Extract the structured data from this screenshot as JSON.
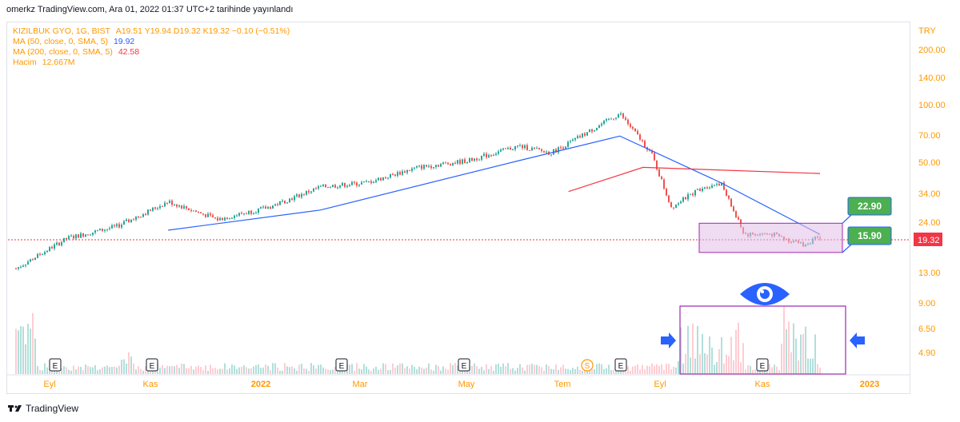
{
  "caption": "omerkz TradingView.com, Ara 01, 2022 01:37 UTC+2 tarihinde yayınlandı",
  "legend": {
    "symbol": "KIZILBUK GYO, 1G, BIST",
    "ohlc": "A19.51  Y19.94  D19.32  K19.32  −0.10 (−0.51%)",
    "ma50_label": "MA (50, close, 0, SMA, 5)",
    "ma50_value": "19.92",
    "ma200_label": "MA (200, close, 0, SMA, 5)",
    "ma200_value": "42.58",
    "volume_label": "Hacim",
    "volume_value": "12.667M"
  },
  "footer": {
    "brand": "TradingView"
  },
  "colors": {
    "up": "#26a69a",
    "down": "#ef5350",
    "ma50": "#2962ff",
    "ma200": "#f23645",
    "axis_text": "#ff9800",
    "box_fill": "#e1bee7",
    "box_border": "#9c27b0",
    "label_green": "#4caf50",
    "arrow_blue": "#2962ff",
    "price_line": "#f23645"
  },
  "chart_data": {
    "type": "candlestick",
    "currency": "TRY",
    "y_scale": "log",
    "y_ticks": [
      "200.00",
      "140.00",
      "100.00",
      "70.00",
      "50.00",
      "34.00",
      "24.00",
      "19.32",
      "13.00",
      "9.00",
      "6.50",
      "4.90"
    ],
    "x_ticks": [
      "Eyl",
      "Kas",
      "2022",
      "Mar",
      "May",
      "Tem",
      "Eyl",
      "Kas",
      "2023"
    ],
    "last_price": 19.32,
    "price_path": [
      [
        "2021-08",
        13
      ],
      [
        "2021-09",
        19
      ],
      [
        "2021-10",
        22
      ],
      [
        "2021-11",
        30
      ],
      [
        "2021-12",
        24
      ],
      [
        "2022-01",
        28
      ],
      [
        "2022-02",
        36
      ],
      [
        "2022-03",
        38
      ],
      [
        "2022-04",
        46
      ],
      [
        "2022-05",
        50
      ],
      [
        "2022-06",
        60
      ],
      [
        "2022-06-20",
        55
      ],
      [
        "2022-07",
        62
      ],
      [
        "2022-08",
        90
      ],
      [
        "2022-08-20",
        55
      ],
      [
        "2022-09",
        28
      ],
      [
        "2022-09-20",
        36
      ],
      [
        "2022-10",
        38
      ],
      [
        "2022-10-15",
        20
      ],
      [
        "2022-11",
        20
      ],
      [
        "2022-11-20",
        17.5
      ],
      [
        "2022-11-30",
        19.32
      ]
    ],
    "ma50_path": [
      [
        "2021-11",
        21
      ],
      [
        "2022-02",
        27
      ],
      [
        "2022-06",
        50
      ],
      [
        "2022-08",
        68
      ],
      [
        "2022-10",
        38
      ],
      [
        "2022-11-30",
        19.92
      ]
    ],
    "ma200_path": [
      [
        "2022-07",
        34
      ],
      [
        "2022-08-15",
        46
      ],
      [
        "2022-11-30",
        42.58
      ]
    ],
    "annotations": {
      "range_box": {
        "upper": 22.9,
        "lower": 15.9
      },
      "labels": [
        "22.90",
        "15.90"
      ],
      "event_markers": [
        "E",
        "E",
        "E",
        "E",
        "S",
        "E",
        "E"
      ]
    },
    "volume_label": "Hacim"
  }
}
